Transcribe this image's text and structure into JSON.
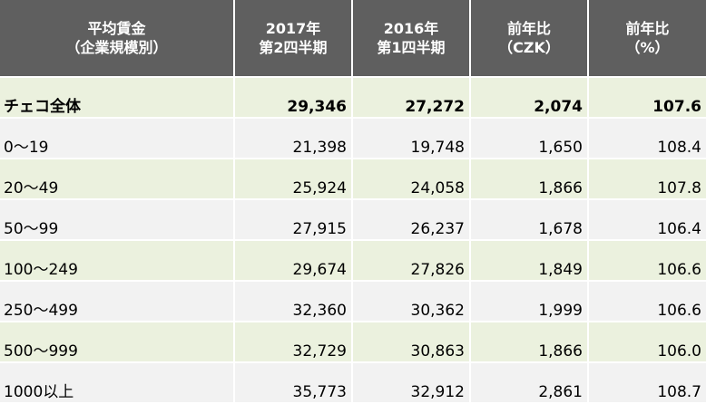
{
  "header": {
    "col0": {
      "line1": "平均賃金",
      "line2": "（企業規模別）"
    },
    "col1": {
      "line1": "2017年",
      "line2": "第2四半期"
    },
    "col2": {
      "line1": "2016年",
      "line2": "第1四半期"
    },
    "col3": {
      "line1": "前年比",
      "line2": "（CZK）"
    },
    "col4": {
      "line1": "前年比",
      "line2": "（%）"
    }
  },
  "rows": [
    {
      "label": "チェコ全体",
      "v2017": "29,346",
      "v2016": "27,272",
      "diff": "2,074",
      "pct": "107.6"
    },
    {
      "label": "0～19",
      "v2017": "21,398",
      "v2016": "19,748",
      "diff": "1,650",
      "pct": "108.4"
    },
    {
      "label": "20～49",
      "v2017": "25,924",
      "v2016": "24,058",
      "diff": "1,866",
      "pct": "107.8"
    },
    {
      "label": "50～99",
      "v2017": "27,915",
      "v2016": "26,237",
      "diff": "1,678",
      "pct": "106.4"
    },
    {
      "label": "100～249",
      "v2017": "29,674",
      "v2016": "27,826",
      "diff": "1,849",
      "pct": "106.6"
    },
    {
      "label": "250～499",
      "v2017": "32,360",
      "v2016": "30,362",
      "diff": "1,999",
      "pct": "106.6"
    },
    {
      "label": "500～999",
      "v2017": "32,729",
      "v2016": "30,863",
      "diff": "1,866",
      "pct": "106.0"
    },
    {
      "label": "1000以上",
      "v2017": "35,773",
      "v2016": "32,912",
      "diff": "2,861",
      "pct": "108.7"
    }
  ],
  "colors": {
    "header_bg": "#5f5f5f",
    "header_text": "#ffffff",
    "row_green": "#ebf1de",
    "row_gray": "#f2f2f2"
  }
}
